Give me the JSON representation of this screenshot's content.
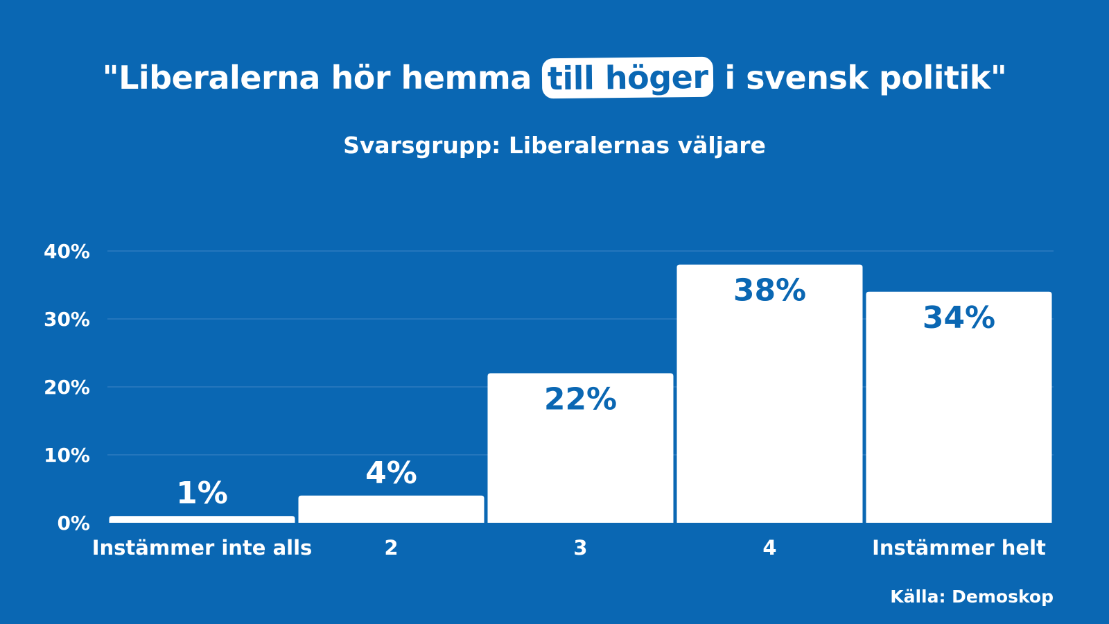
{
  "title": {
    "before": "\"Liberalerna hör hemma ",
    "highlight": "till höger",
    "after": " i svensk politik\""
  },
  "subtitle": "Svarsgrupp: Liberalernas väljare",
  "source": "Källa: Demoskop",
  "colors": {
    "background": "#0a67b3",
    "bar": "#ffffff",
    "value_label_inside": "#0a67b3",
    "value_label_outside": "#ffffff",
    "gridline": "#3d86c6"
  },
  "chart_data": {
    "type": "bar",
    "categories": [
      "Instämmer inte alls",
      "2",
      "3",
      "4",
      "Instämmer helt"
    ],
    "values": [
      1,
      4,
      22,
      38,
      34
    ],
    "value_labels": [
      "1%",
      "4%",
      "22%",
      "38%",
      "34%"
    ],
    "ylim": [
      0,
      40
    ],
    "yticks": [
      0,
      10,
      20,
      30,
      40
    ],
    "ytick_labels": [
      "0%",
      "10%",
      "20%",
      "30%",
      "40%"
    ],
    "grid": true,
    "legend": "none"
  }
}
